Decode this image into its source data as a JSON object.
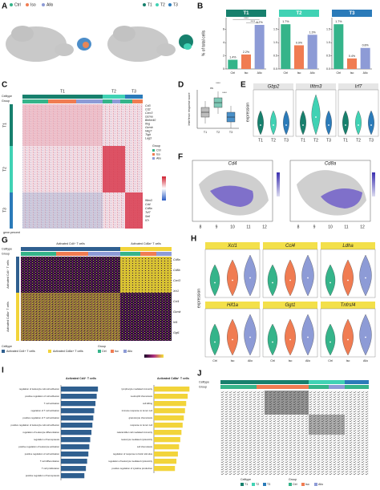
{
  "panel_labels": [
    "A",
    "B",
    "C",
    "D",
    "E",
    "F",
    "G",
    "H",
    "I",
    "J"
  ],
  "panel_a": {
    "group_legend": [
      "Ctrl",
      "Iso",
      "Allo"
    ],
    "celltype_legend": [
      "T1",
      "T2",
      "T3"
    ]
  },
  "panel_c": {
    "celltype": "Celltype",
    "group": "Group",
    "clusters": [
      "T1",
      "T2",
      "T3"
    ],
    "genes": [
      "Cd3",
      "Cd2",
      "Cxcr3",
      "Gzma",
      "Bhlhe40",
      "Ifng",
      "Gzmb",
      "Nkg7",
      "Tigit",
      "Lag3",
      "Ifitm3",
      "Cd4",
      "Cd8a",
      "Tcf7",
      "Sell",
      "Il7r"
    ],
    "group_legend_title": "Group",
    "group_legend": [
      "Ctrl",
      "Iso",
      "Allo"
    ],
    "percent_legend": "gene.percent"
  },
  "panel_d": {
    "ylabel": "Interferon response score",
    "annotations": [
      "ns",
      "****",
      "****"
    ],
    "categories": [
      "T1",
      "T2",
      "T3"
    ]
  },
  "panel_e": {
    "ylabel": "expression",
    "genes": [
      "Gbp2",
      "Ifitm3",
      "Irf7"
    ],
    "categories": [
      "T1",
      "T2",
      "T3"
    ]
  },
  "panel_f": {
    "genes": [
      "Cd4",
      "Cd8a"
    ],
    "xticks": [
      "8",
      "9",
      "10",
      "11",
      "12"
    ]
  },
  "panel_g": {
    "celltype": "Celltype",
    "group": "Group",
    "columns": [
      "Activated Cd4⁺ T cells",
      "Activated Cd8a⁺ T cells"
    ],
    "row_groups": [
      "Activated Cd4⁺ T cells",
      "Activated Cd8a⁺ T cells"
    ],
    "genes": [
      "Cd8a",
      "Cd8b",
      "Cxcl3",
      "Xcl1",
      "Ccl4",
      "Gzmk",
      "Irf4",
      "Ggt1"
    ],
    "legend_celltype_title": "Celltype",
    "legend_celltype": [
      "Activated Cd4+ T cells",
      "Activated Cd8a+ T cells"
    ],
    "legend_group_title": "Group",
    "legend_group": [
      "Ctrl",
      "Iso",
      "Allo"
    ]
  },
  "panel_h": {
    "ylabel": "expression",
    "genes": [
      "Xcl1",
      "Ccl4",
      "Ldha",
      "Hif1a",
      "Ggt1",
      "Tnfrsf4"
    ],
    "categories": [
      "Ctrl",
      "Iso",
      "Allo"
    ]
  },
  "panel_j": {
    "celltype": "Celltype",
    "group": "Group",
    "legend_celltype_title": "Celltype",
    "legend_celltype": [
      "T1",
      "T2",
      "T3"
    ],
    "legend_group_title": "Group",
    "legend_group": [
      "Ctrl",
      "Iso",
      "Allo"
    ]
  },
  "chart_data": [
    {
      "type": "facet_bar",
      "ylabel": "% of total cells",
      "categories": [
        "Ctrl",
        "Iso",
        "Allo"
      ],
      "colors": [
        "#35b48a",
        "#f07c52",
        "#8d9bd6"
      ],
      "facets": [
        {
          "title": "T1",
          "color": "#17806d",
          "values": [
            1.4,
            2.2,
            6.7
          ],
          "value_labels": [
            "1.4%",
            "2.2%",
            "6.7%"
          ],
          "ylim": [
            0,
            7.8
          ],
          "yticks": [
            0,
            2,
            4,
            6
          ],
          "annotations": [
            "****",
            "****"
          ]
        },
        {
          "title": "T2",
          "color": "#40d2b4",
          "values": [
            1.7,
            0.9,
            1.3
          ],
          "value_labels": [
            "1.7%",
            "0.9%",
            "1.3%"
          ],
          "ylim": [
            0,
            1.95
          ],
          "yticks": [
            {
              "value": 0,
              "label": "0.0"
            },
            0.5,
            {
              "value": 1,
              "label": "1.0"
            },
            1.5
          ]
        },
        {
          "title": "T3",
          "color": "#2b7bb9",
          "values": [
            1.7,
            0.4,
            0.8
          ],
          "value_labels": [
            "1.7%",
            "0.4%",
            "0.8%"
          ],
          "ylim": [
            0,
            1.95
          ],
          "yticks": [
            {
              "value": 0,
              "label": "0.0"
            },
            0.5,
            {
              "value": 1,
              "label": "1.0"
            },
            1.5
          ]
        }
      ]
    },
    {
      "type": "hbar",
      "title": "Activated Cd4⁺ T cells",
      "color": "#2f5f8f",
      "xlim": [
        0,
        13
      ],
      "categories": [
        "regulation of leukocyte cell-cell adhesion",
        "positive regulation of cell adhesion",
        "T cell activation",
        "regulation of T cell activation",
        "positive regulation of T cell activation",
        "positive regulation of leukocyte cell-cell adhesion",
        "regulation of leukocyte differentiation",
        "regulation of hemopoiesis",
        "positive regulation of leukocyte activation",
        "positive regulation of cell activation",
        "T cell differentiation",
        "T cell proliferation",
        "positive regulation of hemopoiesis"
      ],
      "values": [
        12,
        11.6,
        11.2,
        10.8,
        10.5,
        10.2,
        9.9,
        9.5,
        9.2,
        8.9,
        8.5,
        8.1,
        7.6
      ]
    },
    {
      "type": "hbar",
      "title": "Activated Cd8a⁺ T cells",
      "color": "#f2d43a",
      "xlim": [
        0,
        13
      ],
      "categories": [
        "lymphocyte mediated immunity",
        "neutrophil chemotaxis",
        "cell killing",
        "immune response to tumor cell",
        "granulocyte chemotaxis",
        "response to tumor cell",
        "natural killer cell mediated immunity",
        "leukocyte mediated cytotoxicity",
        "cell chemotaxis",
        "regulation of response to biotic stimulus",
        "regulation of leukocyte mediated cytotoxicity",
        "positive regulation of cytokine production"
      ],
      "values": [
        12,
        11.4,
        10.9,
        10.5,
        10.1,
        9.7,
        9.3,
        8.9,
        8.5,
        8.1,
        7.6,
        7.1
      ]
    }
  ]
}
